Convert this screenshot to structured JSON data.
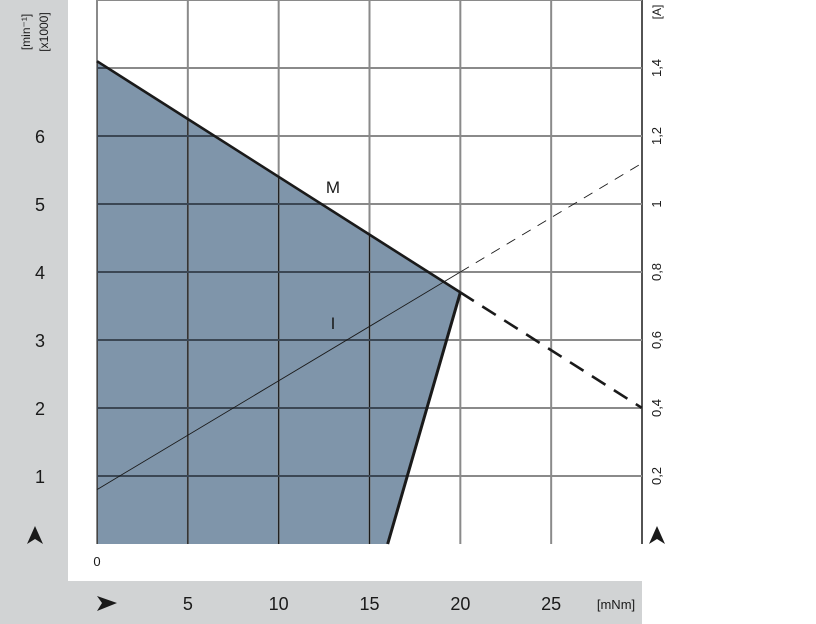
{
  "chart_data": {
    "type": "line",
    "title": "",
    "xlabel": "[mNm]",
    "ylabel_left": [
      "[min⁻¹]",
      "[x1000]"
    ],
    "ylabel_right": "[A]",
    "xlim": [
      0,
      30
    ],
    "ylim_left": [
      0,
      8
    ],
    "ylim_right": [
      0,
      1.6
    ],
    "grid": true,
    "x_ticks": [
      "0",
      "5",
      "10",
      "15",
      "20",
      "25"
    ],
    "x_tick_values": [
      0,
      5,
      10,
      15,
      20,
      25
    ],
    "y_left_ticks": [
      "1",
      "2",
      "3",
      "4",
      "5",
      "6"
    ],
    "y_left_tick_values": [
      1,
      2,
      3,
      4,
      5,
      6
    ],
    "y_right_ticks": [
      "0,2",
      "0,4",
      "0,6",
      "0,8",
      "1",
      "1,2",
      "1,4"
    ],
    "y_right_tick_values": [
      0.2,
      0.4,
      0.6,
      0.8,
      1.0,
      1.2,
      1.4
    ],
    "series": [
      {
        "name": "M",
        "axis": "left",
        "solid": [
          [
            0,
            7.1
          ],
          [
            20,
            3.7
          ]
        ],
        "dashed": [
          [
            20,
            3.7
          ],
          [
            30,
            2.0
          ]
        ]
      },
      {
        "name": "I",
        "axis": "right",
        "solid": [
          [
            0,
            0.16
          ],
          [
            20,
            0.8
          ]
        ],
        "dashed": [
          [
            20,
            0.8
          ],
          [
            30,
            1.12
          ]
        ]
      }
    ],
    "operating_region": {
      "axis": "left",
      "points": [
        [
          0,
          0
        ],
        [
          0,
          7.1
        ],
        [
          20,
          3.7
        ],
        [
          16,
          0
        ]
      ]
    },
    "colors": {
      "region": "#7f95aa",
      "panel": "#d1d3d4",
      "grid": "#8a8a8a",
      "line": "#1a1a1a"
    }
  }
}
